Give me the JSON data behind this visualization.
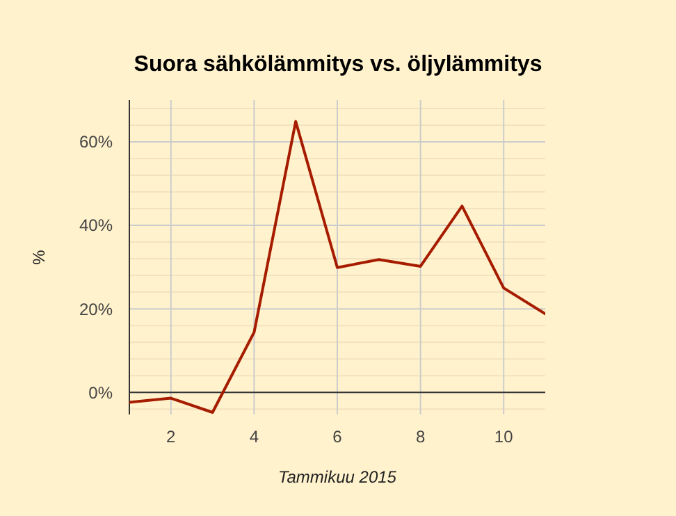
{
  "chart_data": {
    "type": "line",
    "title": "Suora sähkölämmitys vs. öljylämmitys",
    "xlabel": "Tammikuu 2015",
    "ylabel": "%",
    "x": [
      1,
      2,
      3,
      4,
      5,
      6,
      7,
      8,
      9,
      10,
      11
    ],
    "series": [
      {
        "color": "#a61c00",
        "values": [
          -2.4,
          -1.4,
          -4.8,
          14.4,
          64.9,
          29.9,
          31.8,
          30.2,
          44.6,
          25.0,
          18.8
        ]
      }
    ],
    "xlim": [
      1,
      11
    ],
    "xticks": [
      2,
      4,
      6,
      8,
      10
    ],
    "ylim": [
      -5.3,
      70
    ],
    "yticks": [
      {
        "value": -4,
        "label": null
      },
      {
        "value": 0,
        "label": "0%"
      },
      {
        "value": 4,
        "label": null
      },
      {
        "value": 8,
        "label": null
      },
      {
        "value": 12,
        "label": null
      },
      {
        "value": 16,
        "label": null
      },
      {
        "value": 20,
        "label": "20%"
      },
      {
        "value": 24,
        "label": null
      },
      {
        "value": 28,
        "label": null
      },
      {
        "value": 32,
        "label": null
      },
      {
        "value": 36,
        "label": null
      },
      {
        "value": 40,
        "label": "40%"
      },
      {
        "value": 44,
        "label": null
      },
      {
        "value": 48,
        "label": null
      },
      {
        "value": 52,
        "label": null
      },
      {
        "value": 56,
        "label": null
      },
      {
        "value": 60,
        "label": "60%"
      },
      {
        "value": 64,
        "label": null
      },
      {
        "value": 68,
        "label": null
      }
    ],
    "grid": true,
    "marker": "none",
    "line_style": "solid"
  }
}
